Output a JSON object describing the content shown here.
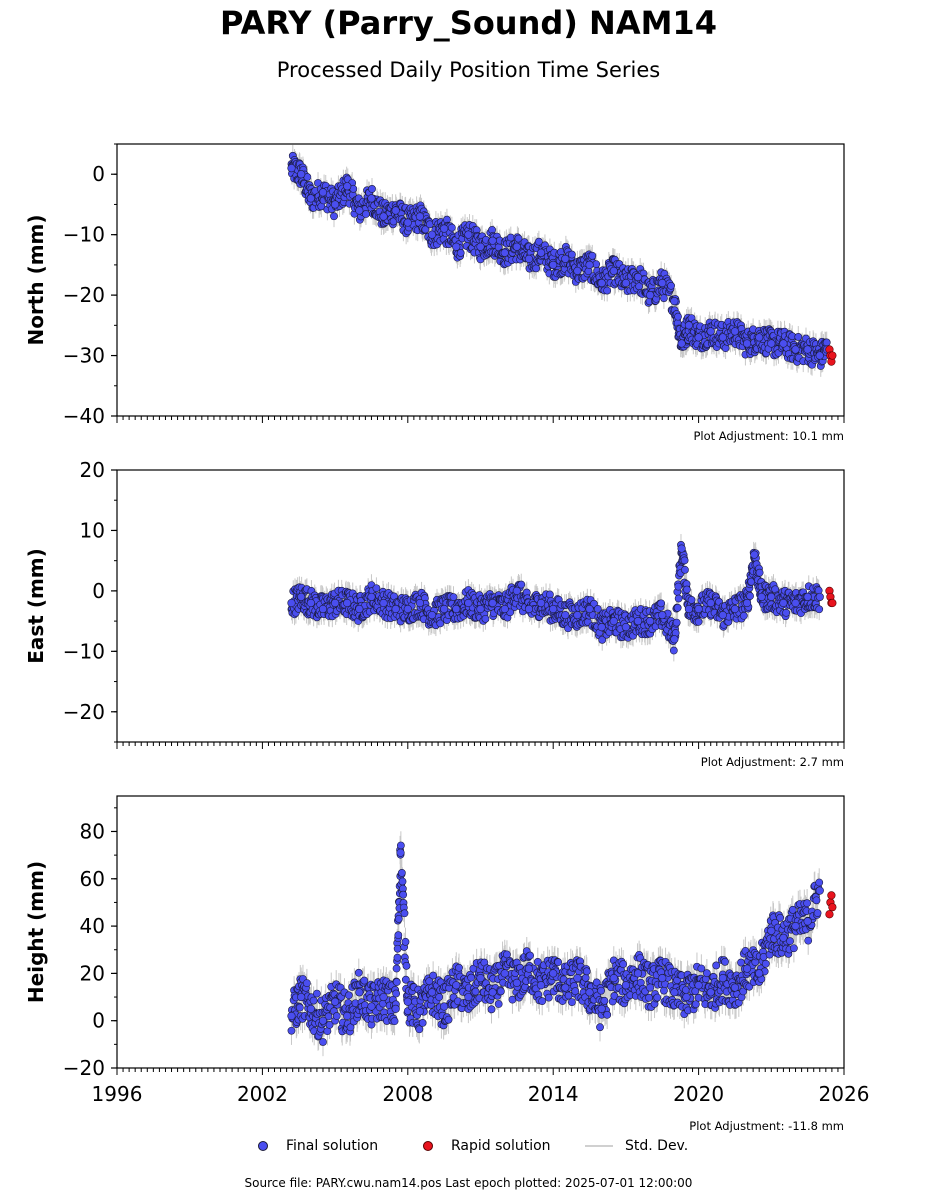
{
  "title": "PARY (Parry_Sound) NAM14",
  "subtitle": "Processed Daily Position Time Series",
  "legend": {
    "final": "Final solution",
    "rapid": "Rapid solution",
    "stddev": "Std. Dev."
  },
  "footer": "Source file: PARY.cwu.nam14.pos  Last epoch plotted: 2025-07-01 12:00:00",
  "colors": {
    "final": "#4a4ef0",
    "rapid": "#e8141e",
    "stddev": "#c8c8c8",
    "outline": "#1a1a3a"
  },
  "chart_data": [
    {
      "type": "scatter",
      "ylabel": "North (mm)",
      "adjustment": "Plot Adjustment: 10.1 mm",
      "xlim": [
        1996,
        2026
      ],
      "ylim": [
        -40,
        5
      ],
      "yticks": [
        0,
        -10,
        -20,
        -30,
        -40
      ],
      "ytick_labels": [
        "0",
        "−10",
        "−20",
        "−30",
        "−40"
      ],
      "series": [
        {
          "name": "Final solution",
          "x": [
            2003.2,
            2003.6,
            2004.0,
            2004.5,
            2005.0,
            2005.5,
            2006.0,
            2006.5,
            2007.0,
            2007.5,
            2008.0,
            2008.5,
            2009.0,
            2009.5,
            2010.0,
            2010.5,
            2011.0,
            2011.5,
            2012.0,
            2012.5,
            2013.0,
            2013.5,
            2014.0,
            2014.5,
            2015.0,
            2015.5,
            2016.0,
            2016.5,
            2017.0,
            2017.5,
            2018.0,
            2018.5,
            2019.0,
            2019.3,
            2019.6,
            2020.0,
            2020.5,
            2021.0,
            2021.5,
            2022.0,
            2022.5,
            2023.0,
            2023.5,
            2024.0,
            2024.5,
            2025.0,
            2025.3
          ],
          "values": [
            1,
            0,
            -4,
            -3,
            -5,
            -2,
            -6,
            -4,
            -7,
            -6,
            -8,
            -7,
            -10,
            -9,
            -12,
            -10,
            -12,
            -11,
            -13,
            -12,
            -14,
            -13,
            -15,
            -14,
            -16,
            -15,
            -18,
            -16,
            -18,
            -17,
            -20,
            -18,
            -21,
            -28,
            -25,
            -27,
            -26,
            -27,
            -26,
            -28,
            -27,
            -28,
            -28,
            -29,
            -29,
            -30,
            -29
          ]
        },
        {
          "name": "Rapid solution",
          "x": [
            2025.4,
            2025.44,
            2025.48,
            2025.52
          ],
          "values": [
            -29,
            -30,
            -31,
            -30
          ]
        }
      ]
    },
    {
      "type": "scatter",
      "ylabel": "East (mm)",
      "adjustment": "Plot Adjustment: 2.7 mm",
      "xlim": [
        1996,
        2026
      ],
      "ylim": [
        -25,
        20
      ],
      "yticks": [
        20,
        10,
        0,
        -10,
        -20
      ],
      "ytick_labels": [
        "20",
        "10",
        "0",
        "−10",
        "−20"
      ],
      "series": [
        {
          "name": "Final solution",
          "x": [
            2003.2,
            2003.6,
            2004.0,
            2004.5,
            2005.0,
            2005.5,
            2006.0,
            2006.5,
            2007.0,
            2007.5,
            2008.0,
            2008.5,
            2009.0,
            2009.5,
            2010.0,
            2010.5,
            2011.0,
            2011.5,
            2012.0,
            2012.5,
            2013.0,
            2013.5,
            2014.0,
            2014.5,
            2015.0,
            2015.5,
            2016.0,
            2016.5,
            2017.0,
            2017.5,
            2018.0,
            2018.5,
            2019.0,
            2019.3,
            2019.6,
            2020.0,
            2020.5,
            2021.0,
            2021.5,
            2022.0,
            2022.3,
            2022.6,
            2023.0,
            2023.5,
            2024.0,
            2024.5,
            2025.0
          ],
          "values": [
            -2,
            -1,
            -2,
            -3,
            -2,
            -2,
            -3,
            -1,
            -2,
            -3,
            -3,
            -2,
            -4,
            -3,
            -3,
            -2,
            -3,
            -2,
            -3,
            0,
            -3,
            -2,
            -3,
            -4,
            -4,
            -3,
            -6,
            -5,
            -6,
            -5,
            -5,
            -4,
            -8,
            7,
            -3,
            -3,
            -2,
            -4,
            -3,
            -2,
            6,
            -1,
            -1,
            -2,
            -2,
            -1,
            -1
          ]
        },
        {
          "name": "Rapid solution",
          "x": [
            2025.4,
            2025.44,
            2025.48,
            2025.52
          ],
          "values": [
            0,
            -1,
            -2,
            -2
          ]
        }
      ]
    },
    {
      "type": "scatter",
      "ylabel": "Height (mm)",
      "adjustment": "Plot Adjustment: -11.8 mm",
      "xlim": [
        1996,
        2026
      ],
      "ylim": [
        -20,
        95
      ],
      "yticks": [
        80,
        60,
        40,
        20,
        0,
        -20
      ],
      "ytick_labels": [
        "80",
        "60",
        "40",
        "20",
        "0",
        "−20"
      ],
      "xticks": [
        1996,
        2002,
        2008,
        2014,
        2020,
        2026
      ],
      "xtick_labels": [
        "1996",
        "2002",
        "2008",
        "2014",
        "2020",
        "2026"
      ],
      "series": [
        {
          "name": "Final solution",
          "x": [
            2003.2,
            2003.6,
            2004.0,
            2004.5,
            2005.0,
            2005.5,
            2006.0,
            2006.5,
            2007.0,
            2007.5,
            2007.7,
            2008.0,
            2008.5,
            2009.0,
            2009.5,
            2010.0,
            2010.5,
            2011.0,
            2011.5,
            2012.0,
            2012.5,
            2013.0,
            2013.5,
            2014.0,
            2014.5,
            2015.0,
            2015.5,
            2016.0,
            2016.5,
            2017.0,
            2017.5,
            2018.0,
            2018.5,
            2019.0,
            2019.5,
            2020.0,
            2020.5,
            2021.0,
            2021.5,
            2022.0,
            2022.5,
            2023.0,
            2023.5,
            2024.0,
            2024.5,
            2025.0
          ],
          "values": [
            2,
            10,
            5,
            0,
            8,
            2,
            12,
            6,
            10,
            5,
            71,
            8,
            4,
            12,
            6,
            15,
            10,
            18,
            12,
            20,
            16,
            22,
            15,
            20,
            14,
            18,
            12,
            5,
            18,
            15,
            20,
            14,
            18,
            12,
            10,
            15,
            12,
            18,
            14,
            22,
            20,
            38,
            35,
            40,
            42,
            55
          ]
        },
        {
          "name": "Rapid solution",
          "x": [
            2025.4,
            2025.44,
            2025.48,
            2025.52
          ],
          "values": [
            45,
            50,
            53,
            48
          ]
        }
      ]
    }
  ]
}
